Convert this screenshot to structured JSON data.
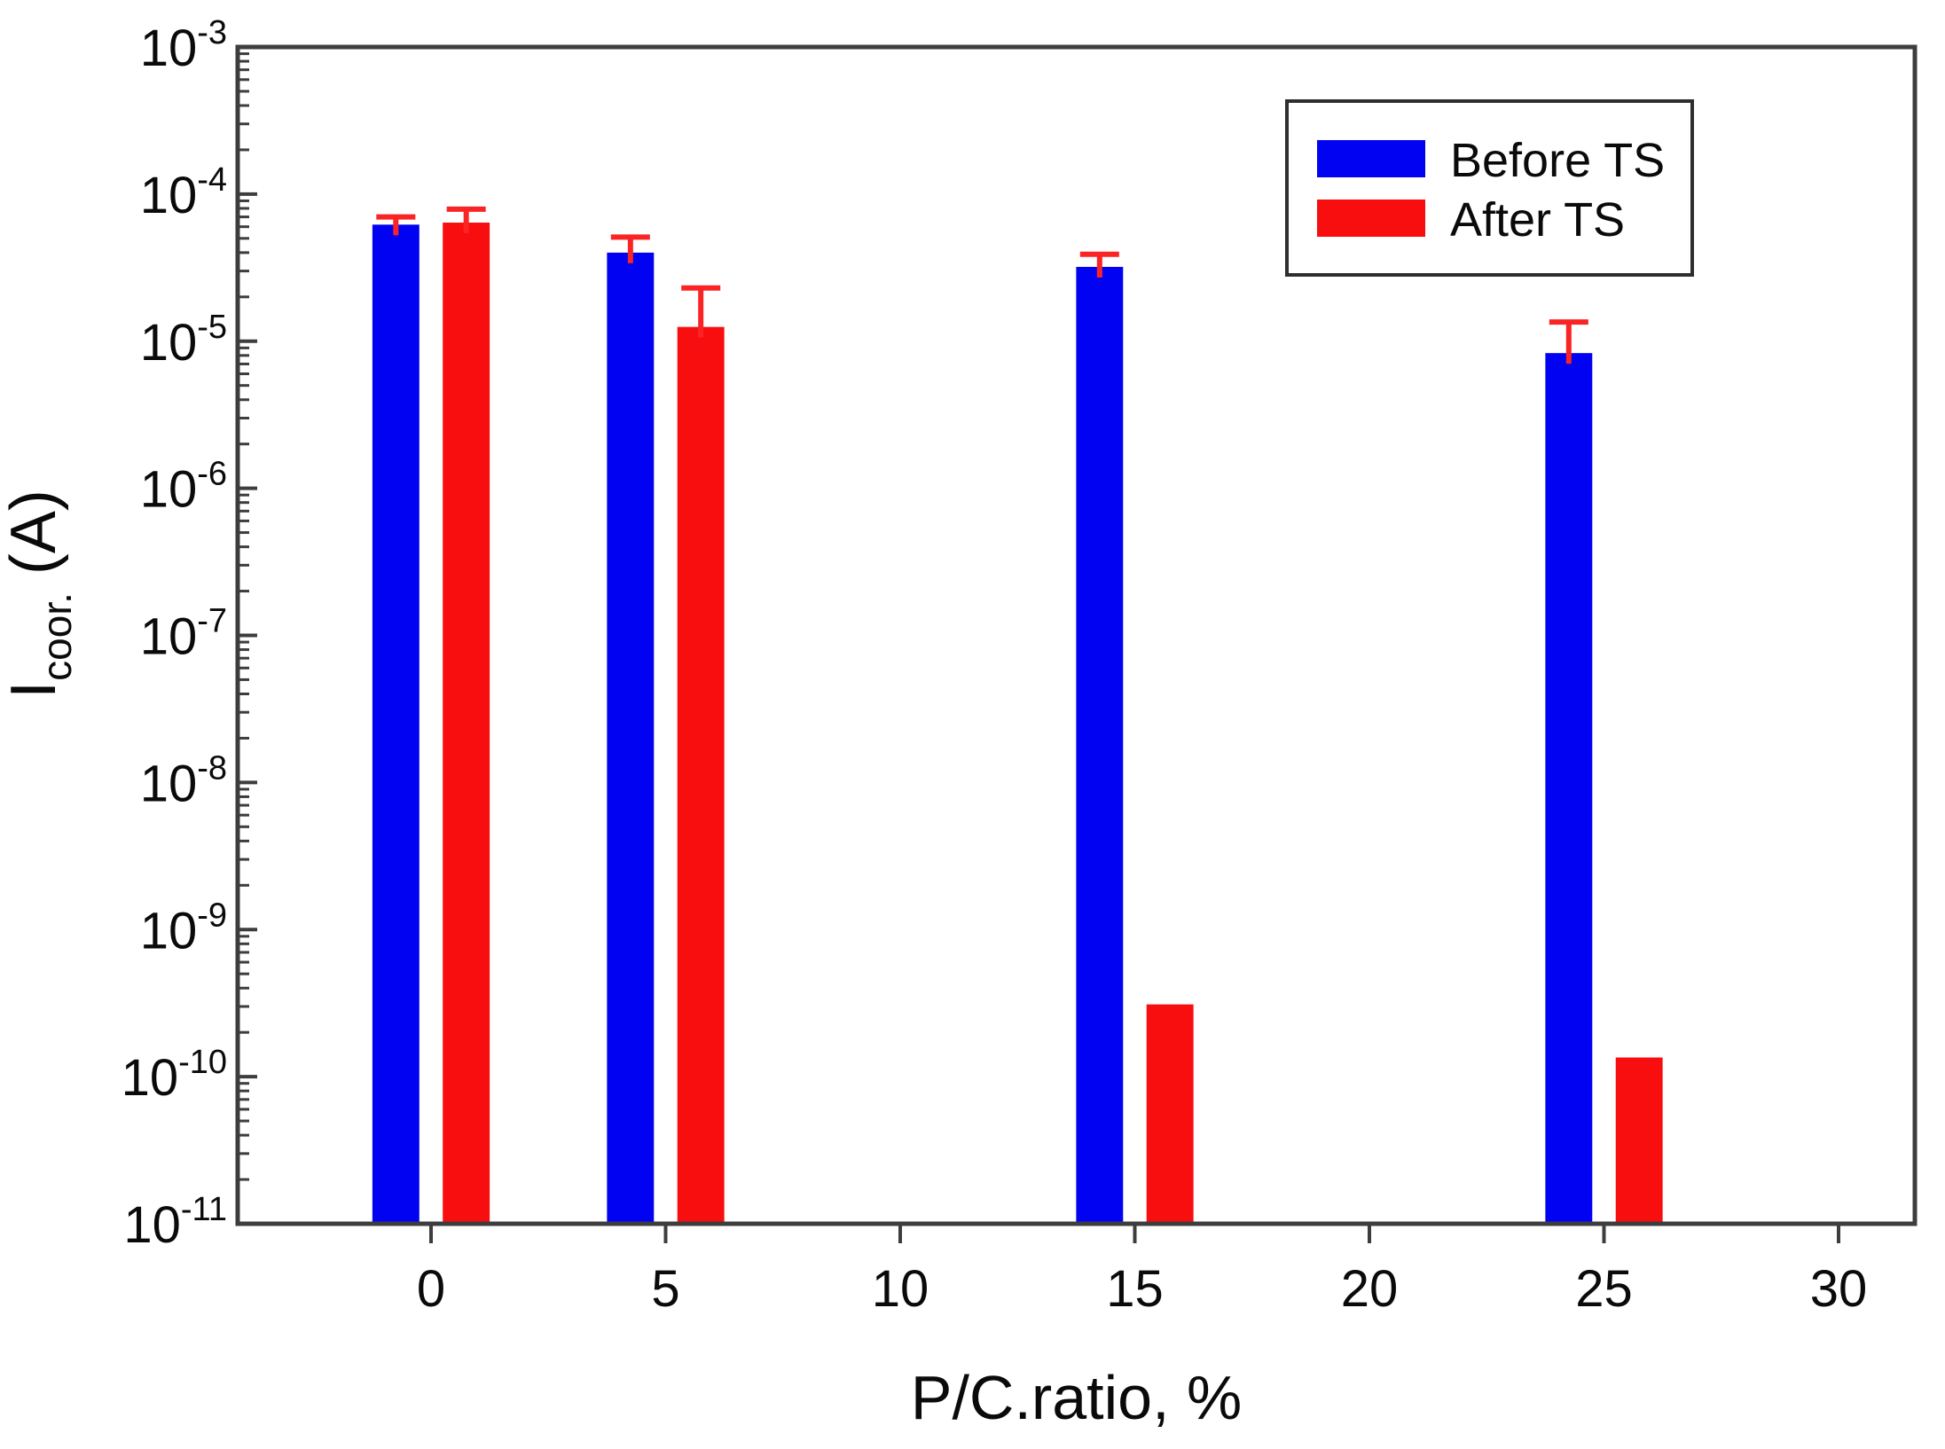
{
  "chart_data": {
    "type": "bar",
    "title": "",
    "xlabel": "P/C.ratio, %",
    "ylabel": {
      "main": "I",
      "subscript": "coor.",
      "suffix": " (A)"
    },
    "x_axis": {
      "ticks": [
        0,
        5,
        10,
        15,
        20,
        25,
        30
      ],
      "min": -4.12,
      "max": 31.63
    },
    "y_axis": {
      "scale": "log",
      "tick_base": "10",
      "tick_exponents": [
        -3,
        -4,
        -5,
        -6,
        -7,
        -8,
        -9,
        -10,
        -11
      ],
      "min": 1e-11,
      "max": 0.001,
      "minor_ticks": true
    },
    "categories": [
      0,
      5,
      15,
      25
    ],
    "bar_width_units": 1.0,
    "series": [
      {
        "name": "Before TS",
        "color": "#0202f2",
        "offset_units": -0.75,
        "values": [
          6.2e-05,
          4e-05,
          3.2e-05,
          8.3e-06
        ],
        "error_top": [
          7e-05,
          5.1e-05,
          3.9e-05,
          1.35e-05
        ]
      },
      {
        "name": "After TS",
        "color": "#f80e0e",
        "offset_units": 0.75,
        "values": [
          6.4e-05,
          1.25e-05,
          3.1e-10,
          1.35e-10
        ],
        "error_top": [
          7.9e-05,
          2.3e-05,
          null,
          null
        ]
      }
    ],
    "error_bar_color": "#fa2424",
    "legend": {
      "position": "top-right",
      "entries": [
        "Before TS",
        "After TS"
      ]
    },
    "frame_color": "#3d3d3d",
    "text_color": "#0a0a0a",
    "background": "#ffffff",
    "grid": "off"
  }
}
